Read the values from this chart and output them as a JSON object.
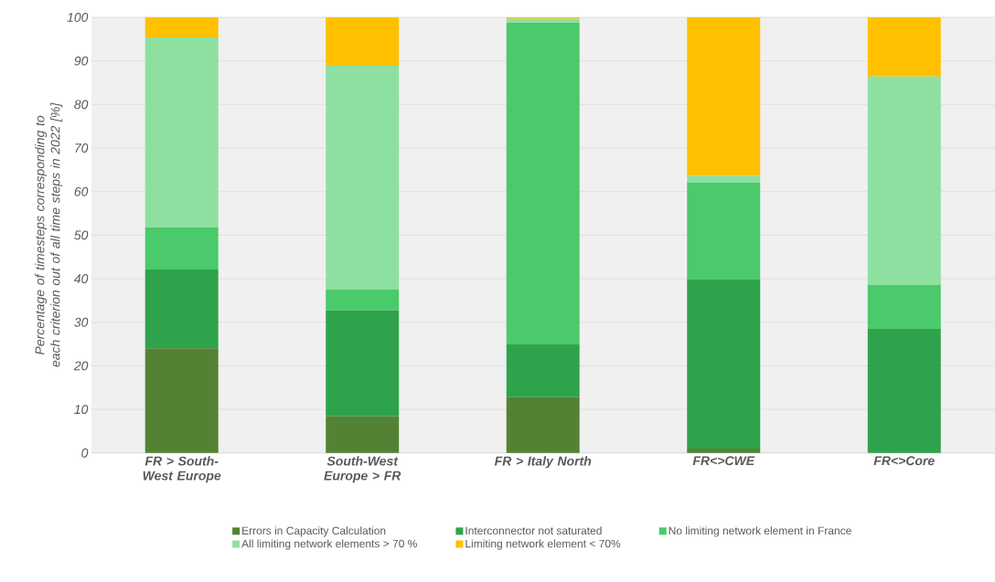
{
  "chart_data": {
    "type": "bar",
    "stacked": true,
    "ylabel": "Percentage of timesteps corresponding to each criterion out of all time steps in 2022 [%]",
    "categories": [
      "FR > South-West Europe",
      "South-West Europe > FR",
      "FR > Italy North",
      "FR<>CWE",
      "FR<>Core"
    ],
    "series": [
      {
        "name": "Errors in Capacity Calculation",
        "color": "#548235",
        "values": [
          24,
          8.4,
          12.8,
          1.0,
          0
        ]
      },
      {
        "name": "Interconnector not saturated",
        "color": "#2ea34c",
        "values": [
          18.1,
          24.3,
          12.1,
          38.9,
          28.5
        ]
      },
      {
        "name": "No limiting network element in France",
        "color": "#4aca6a",
        "values": [
          9.7,
          4.8,
          73.9,
          22.2,
          10.1
        ]
      },
      {
        "name": "All limiting network elements > 70 %",
        "color": "#8ee0a0",
        "values": [
          43.6,
          51.4,
          0.9,
          1.5,
          47.8
        ]
      },
      {
        "name": "Limiting network element < 70%",
        "color": "#ffc000",
        "values": [
          4.6,
          11.1,
          0.3,
          36.4,
          13.6
        ]
      }
    ],
    "ylim": [
      0,
      100
    ],
    "yticks": [
      0,
      10,
      20,
      30,
      40,
      50,
      60,
      70,
      80,
      90,
      100
    ],
    "grid": "y",
    "legend": "bottom"
  }
}
